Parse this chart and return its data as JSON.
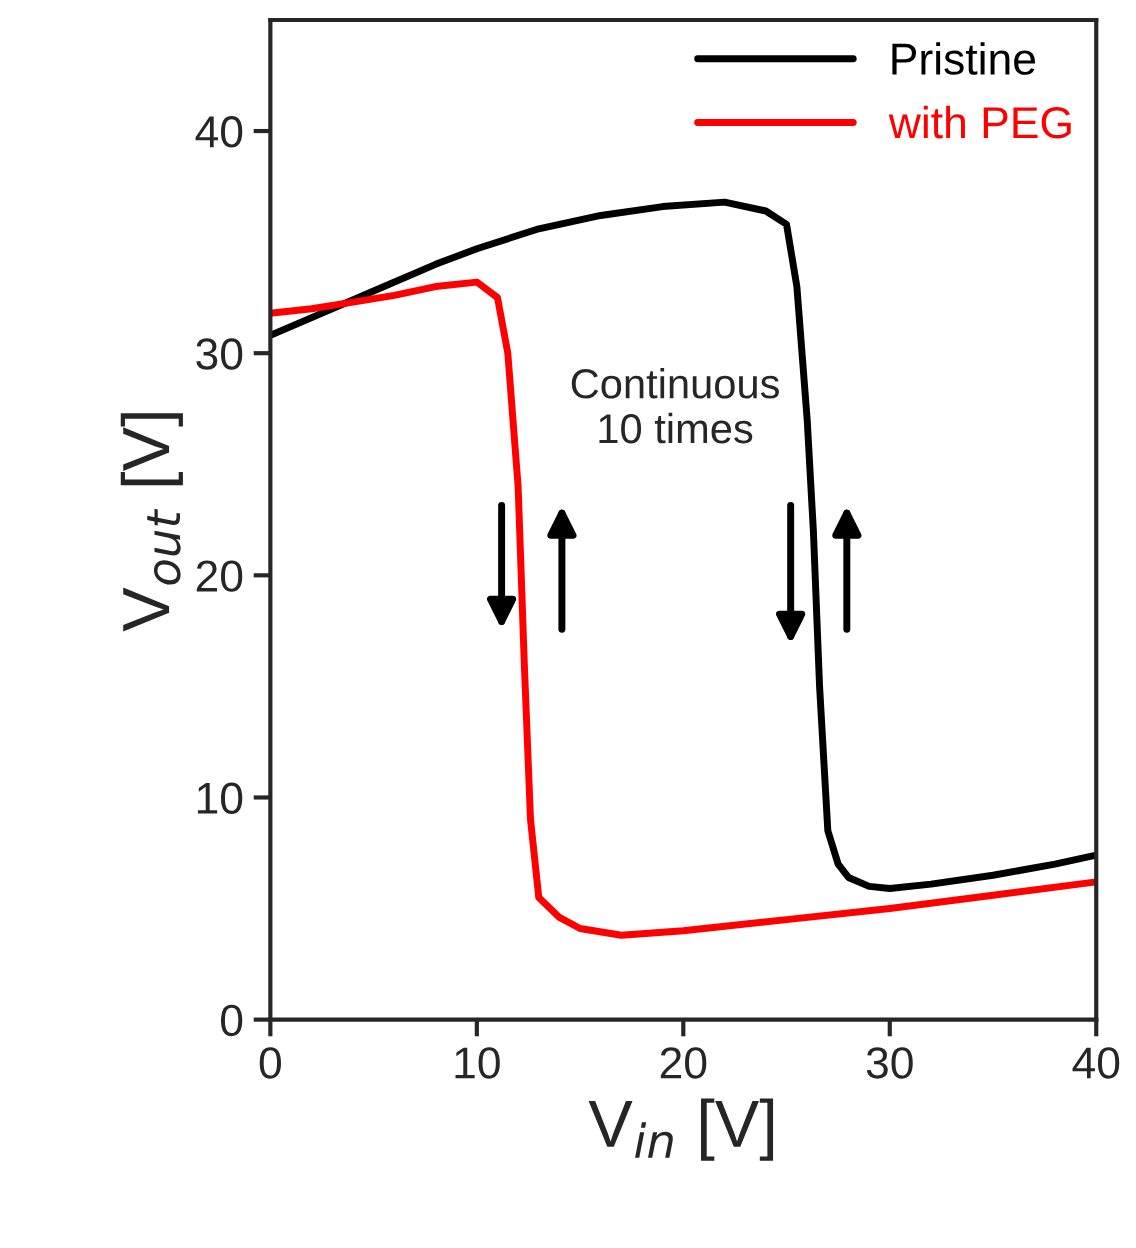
{
  "chart_data": {
    "type": "line",
    "xlabel": "V$_{in}$ [V]",
    "ylabel": "V$_{out}$ [V]",
    "xlim": [
      0,
      40
    ],
    "xticks": [
      0,
      10,
      20,
      30,
      40
    ],
    "ylim": [
      0,
      45
    ],
    "yticks": [
      0,
      10,
      20,
      30,
      40
    ],
    "legend": "top right",
    "grid": false,
    "line_style": "solid",
    "marker": "none",
    "annotations": [
      "Continuous\n10 times"
    ],
    "series": [
      {
        "name": "Pristine",
        "color": "#000000",
        "x": [
          0,
          2,
          5,
          8,
          10,
          13,
          16,
          19,
          22,
          24,
          25,
          25.5,
          26,
          26.3,
          26.6,
          27,
          27.5,
          28,
          29,
          30,
          32,
          35,
          38,
          40
        ],
        "values": [
          30.8,
          31.6,
          32.8,
          34,
          34.7,
          35.6,
          36.2,
          36.6,
          36.8,
          36.4,
          35.8,
          33,
          27,
          22,
          15,
          8.5,
          7,
          6.4,
          6,
          5.9,
          6.1,
          6.5,
          7,
          7.4
        ]
      },
      {
        "name": "with PEG",
        "color": "#ff0000",
        "x": [
          0,
          2,
          4,
          6,
          8,
          10,
          11,
          11.5,
          12,
          12.3,
          12.6,
          13,
          14,
          15,
          17,
          20,
          25,
          30,
          35,
          40
        ],
        "values": [
          31.8,
          32,
          32.3,
          32.6,
          33,
          33.2,
          32.5,
          30,
          24,
          16,
          9,
          5.5,
          4.6,
          4.1,
          3.8,
          4,
          4.5,
          5,
          5.6,
          6.2
        ]
      }
    ]
  }
}
